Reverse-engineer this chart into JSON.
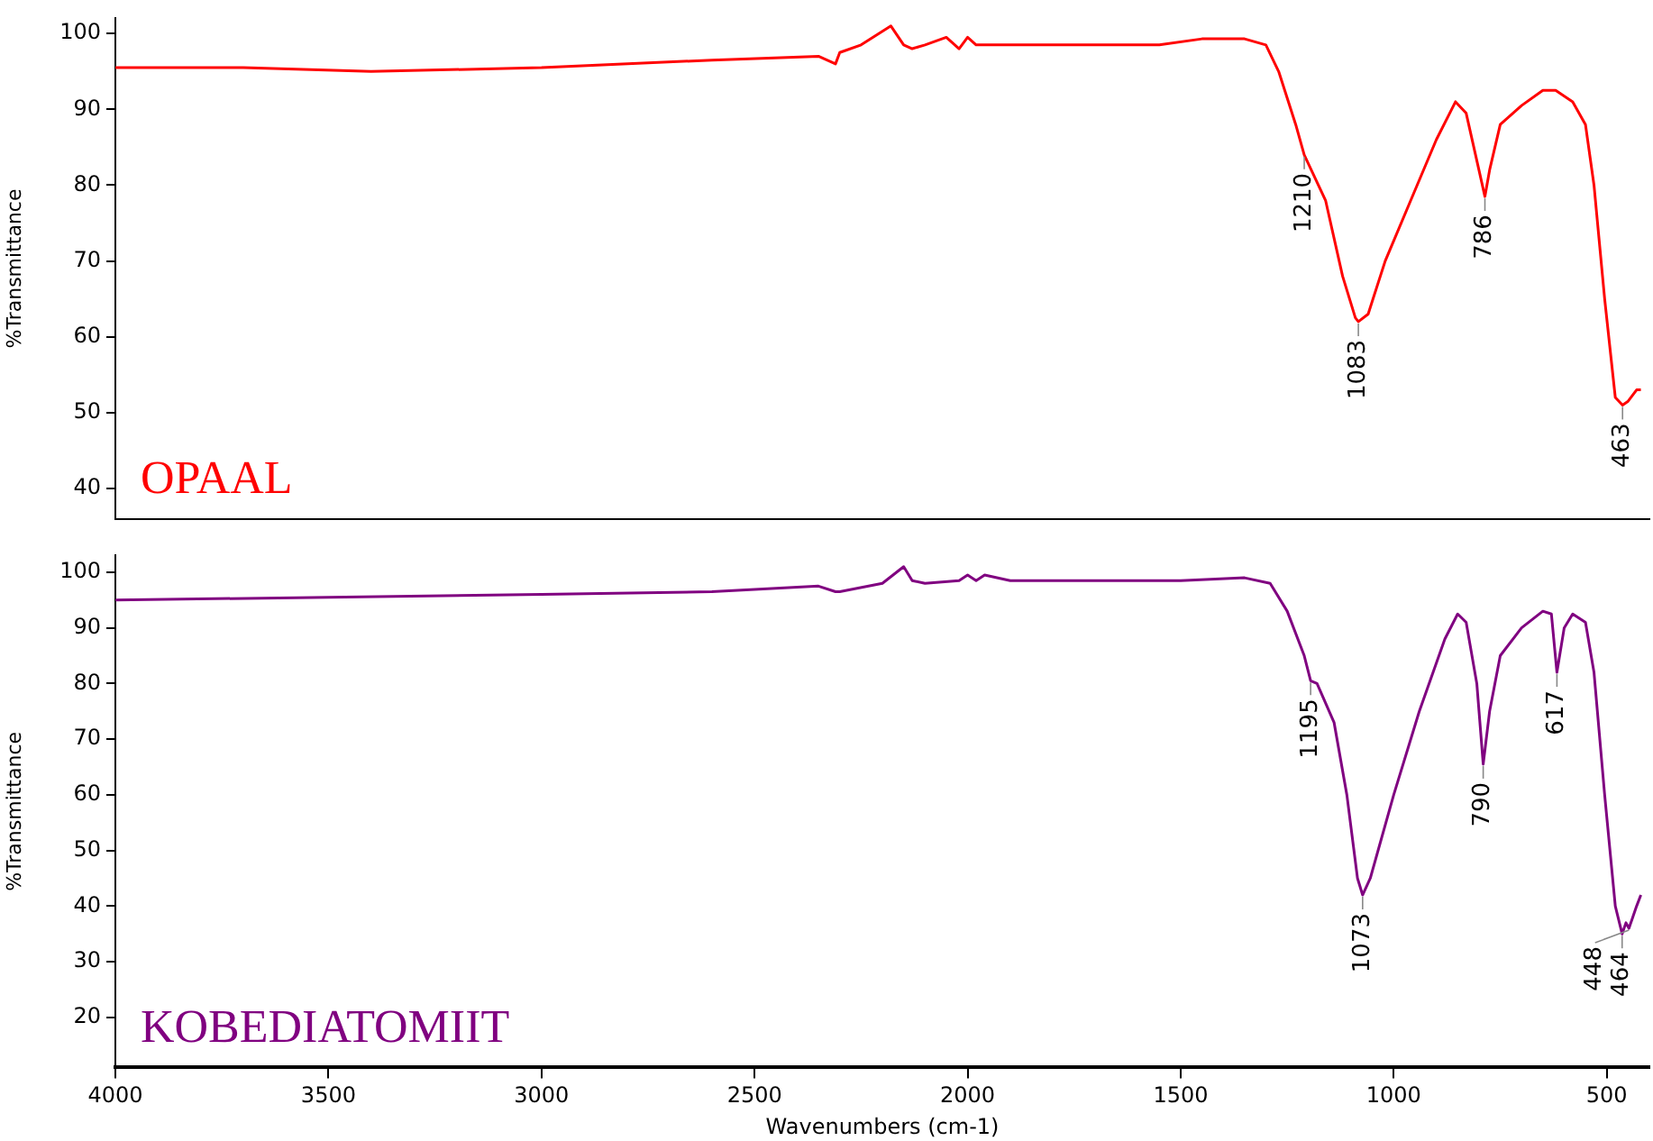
{
  "chart_data": [
    {
      "type": "line",
      "ylabel": "%Transmittance",
      "xlim": [
        4000,
        400
      ],
      "xticks": [
        4000,
        3500,
        3000,
        2500,
        2000,
        1500,
        1000,
        500
      ],
      "ylim": [
        36,
        102
      ],
      "yticks": [
        40,
        50,
        60,
        70,
        80,
        90,
        100
      ],
      "tick_labels": "y",
      "grid": false,
      "legend": false,
      "marker": "none",
      "line_style": "solid",
      "series": [
        {
          "name": "OPAAL",
          "color": "#ff0000",
          "x": [
            4000,
            3700,
            3400,
            3000,
            2600,
            2350,
            2310,
            2300,
            2250,
            2180,
            2150,
            2130,
            2100,
            2050,
            2020,
            2000,
            1980,
            1960,
            1900,
            1700,
            1550,
            1450,
            1350,
            1300,
            1270,
            1230,
            1210,
            1160,
            1120,
            1090,
            1083,
            1060,
            1020,
            960,
            900,
            855,
            830,
            800,
            786,
            775,
            750,
            700,
            650,
            620,
            580,
            550,
            530,
            505,
            480,
            463,
            450,
            430,
            420
          ],
          "values": [
            95.5,
            95.5,
            95,
            95.5,
            96.5,
            97,
            96,
            97.5,
            98.5,
            101,
            98.5,
            98,
            98.5,
            99.5,
            98,
            99.5,
            98.5,
            98.5,
            98.5,
            98.5,
            98.5,
            99.3,
            99.3,
            98.5,
            95,
            88,
            84,
            78,
            68,
            62.5,
            62,
            63,
            70,
            78,
            86,
            91,
            89.5,
            82,
            78.5,
            82,
            88,
            90.5,
            92.5,
            92.5,
            91,
            88,
            80,
            65,
            52,
            51,
            51.5,
            53,
            53
          ]
        }
      ],
      "annotations": [
        {
          "text": "1210",
          "x": 1210,
          "y": 84
        },
        {
          "text": "1083",
          "x": 1083,
          "y": 62
        },
        {
          "text": "786",
          "x": 786,
          "y": 78.5
        },
        {
          "text": "463",
          "x": 463,
          "y": 51
        }
      ]
    },
    {
      "type": "line",
      "ylabel": "%Transmittance",
      "xlabel": "Wavenumbers (cm-1)",
      "xlim": [
        4000,
        400
      ],
      "xticks": [
        4000,
        3500,
        3000,
        2500,
        2000,
        1500,
        1000,
        500
      ],
      "ylim": [
        11,
        103
      ],
      "yticks": [
        20,
        30,
        40,
        50,
        60,
        70,
        80,
        90,
        100
      ],
      "grid": false,
      "legend": false,
      "marker": "none",
      "line_style": "solid",
      "series": [
        {
          "name": "KOBEDIATOMIIT",
          "color": "#800080",
          "x": [
            4000,
            3500,
            3000,
            2600,
            2350,
            2310,
            2300,
            2200,
            2150,
            2130,
            2100,
            2020,
            2000,
            1980,
            1960,
            1900,
            1700,
            1500,
            1350,
            1290,
            1250,
            1210,
            1195,
            1180,
            1140,
            1110,
            1085,
            1073,
            1055,
            1000,
            940,
            880,
            850,
            830,
            805,
            790,
            775,
            750,
            700,
            650,
            630,
            617,
            600,
            580,
            550,
            530,
            505,
            480,
            464,
            455,
            448,
            430,
            420
          ],
          "values": [
            95,
            95.5,
            96,
            96.5,
            97.5,
            96.5,
            96.5,
            98,
            101,
            98.5,
            98,
            98.5,
            99.5,
            98.5,
            99.5,
            98.5,
            98.5,
            98.5,
            99,
            98,
            93,
            85,
            80.5,
            80,
            73,
            60,
            45,
            42,
            45,
            60,
            75,
            88,
            92.5,
            91,
            80,
            65.5,
            75,
            85,
            90,
            93,
            92.5,
            82,
            90,
            92.5,
            91,
            82,
            60,
            40,
            35,
            37,
            36,
            40,
            42
          ]
        }
      ],
      "annotations": [
        {
          "text": "1195",
          "x": 1195,
          "y": 80.5
        },
        {
          "text": "1073",
          "x": 1073,
          "y": 42
        },
        {
          "text": "790",
          "x": 790,
          "y": 65.5
        },
        {
          "text": "617",
          "x": 617,
          "y": 82
        },
        {
          "text": "464",
          "x": 464,
          "y": 35
        },
        {
          "text": "448",
          "x": 448,
          "y": 36
        }
      ]
    }
  ]
}
